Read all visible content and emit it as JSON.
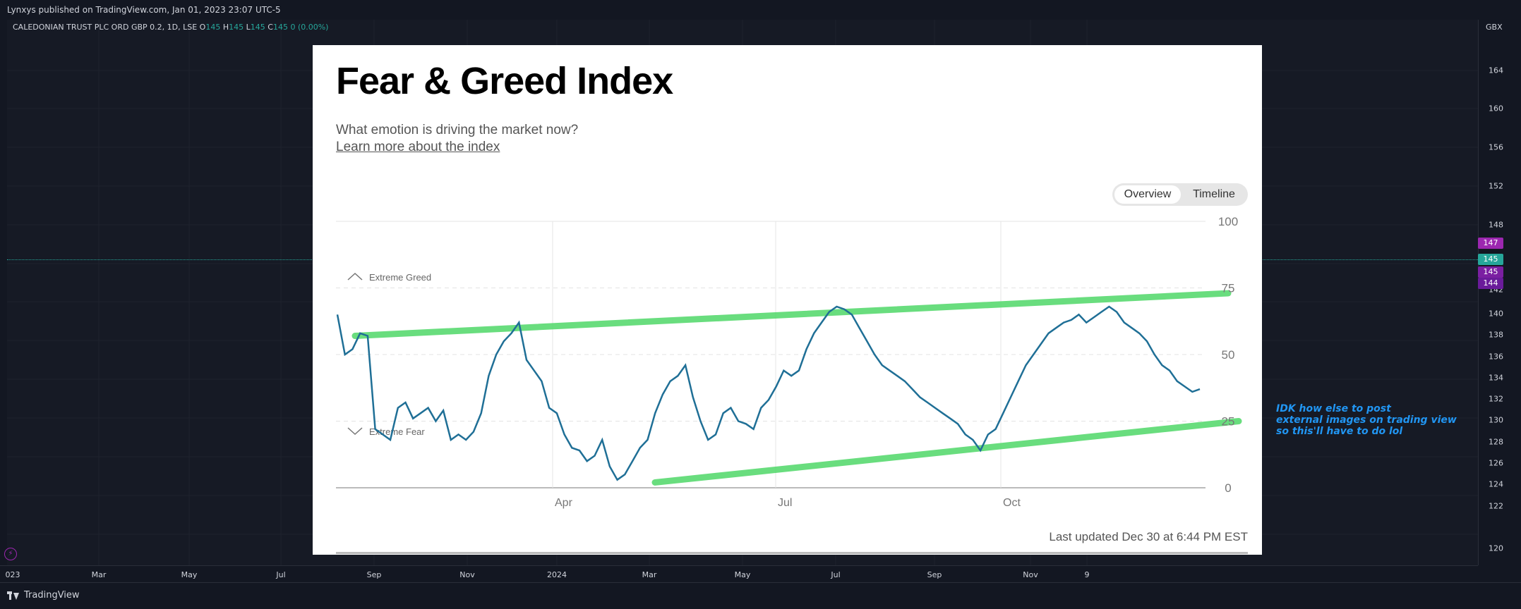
{
  "header": {
    "published": "Lynxys published on TradingView.com, Jan 01, 2023 23:07 UTC-5"
  },
  "symbol": {
    "name": "CALEDONIAN TRUST PLC ORD GBP 0.2, 1D, LSE",
    "o_label": "O",
    "o": "145",
    "h_label": "H",
    "h": "145",
    "l_label": "L",
    "l": "145",
    "c_label": "C",
    "c": "145",
    "change": "0 (0.00%)"
  },
  "price_axis": {
    "currency": "GBX",
    "ticks": [
      "164",
      "160",
      "156",
      "152",
      "148",
      "142",
      "140",
      "138",
      "136",
      "134",
      "132",
      "130",
      "128",
      "126",
      "124",
      "122",
      "120"
    ],
    "badges": [
      {
        "text": "147",
        "color": "#9c27b0"
      },
      {
        "text": "145",
        "color": "#26a69a"
      },
      {
        "text": "145",
        "color": "#7b1fa2"
      },
      {
        "text": "144",
        "color": "#6a1b9a"
      }
    ]
  },
  "time_axis": {
    "labels": [
      "023",
      "Mar",
      "May",
      "Jul",
      "Sep",
      "Nov",
      "2024",
      "Mar",
      "May",
      "Jul",
      "Sep",
      "Nov",
      "9"
    ]
  },
  "footer": {
    "brand": "TradingView"
  },
  "note": {
    "lines": [
      "IDK how else to post",
      "external images on trading view",
      "so this'll have to do lol"
    ],
    "color": "#2196f3"
  },
  "embedded_image": {
    "title": "Fear & Greed Index",
    "subtitle": "What emotion is driving the market now?",
    "link": "Learn more about the index",
    "toggle": {
      "selected": "Overview",
      "other": "Timeline"
    },
    "zone_labels": {
      "top": "Extreme Greed",
      "bottom": "Extreme Fear"
    },
    "updated": "Last updated Dec 30 at 6:44 PM EST",
    "chart_data": {
      "type": "line",
      "ylim": [
        0,
        100
      ],
      "yticks": [
        "100",
        "75",
        "50",
        "25",
        "0"
      ],
      "xticks": [
        "Apr",
        "Jul",
        "Oct"
      ],
      "series": [
        {
          "values": [
            65,
            50,
            52,
            58,
            57,
            22,
            20,
            18,
            30,
            32,
            26,
            28,
            30,
            25,
            29,
            18,
            20,
            18,
            21,
            28,
            42,
            50,
            55,
            58,
            62,
            48,
            44,
            40,
            30,
            28,
            20,
            15,
            14,
            10,
            12,
            18,
            8,
            3,
            5,
            10,
            15,
            18,
            28,
            35,
            40,
            42,
            46,
            34,
            25,
            18,
            20,
            28,
            30,
            25,
            24,
            22,
            30,
            33,
            38,
            44,
            42,
            44,
            52,
            58,
            62,
            66,
            68,
            67,
            65,
            60,
            55,
            50,
            46,
            44,
            42,
            40,
            37,
            34,
            32,
            30,
            28,
            26,
            24,
            20,
            18,
            14,
            20,
            22,
            28,
            34,
            40,
            46,
            50,
            54,
            58,
            60,
            62,
            63,
            65,
            62,
            64,
            66,
            68,
            66,
            62,
            60,
            58,
            55,
            50,
            46,
            44,
            40,
            38,
            36,
            37
          ]
        }
      ],
      "trend_lines": [
        {
          "name": "upper",
          "from": 57,
          "to": 73
        },
        {
          "name": "lower",
          "from": 2,
          "to": 25
        }
      ]
    }
  }
}
